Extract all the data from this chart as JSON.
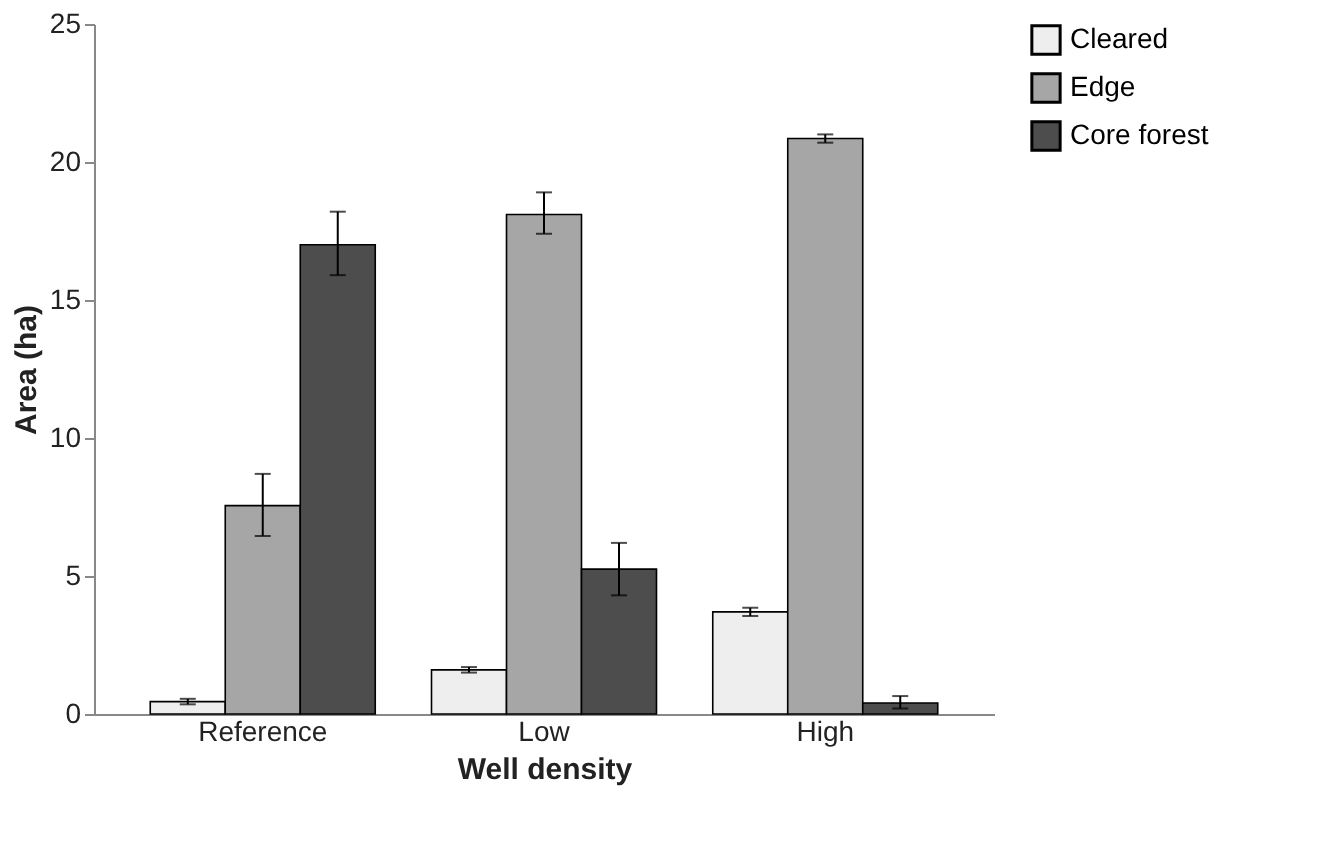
{
  "chart_data": {
    "type": "bar",
    "xlabel": "Well density",
    "ylabel": "Area (ha)",
    "categories": [
      "Reference",
      "Low",
      "High"
    ],
    "series": [
      {
        "name": "Cleared",
        "color": "#eeeeee",
        "values": [
          0.45,
          1.6,
          3.7
        ],
        "errors": [
          0.1,
          0.1,
          0.15
        ]
      },
      {
        "name": "Edge",
        "color": "#a6a6a6",
        "values": [
          7.55,
          18.1,
          20.85
        ],
        "errors": [
          [
            6.45,
            8.7
          ],
          [
            17.4,
            18.9
          ],
          [
            20.7,
            21.0
          ]
        ]
      },
      {
        "name": "Core forest",
        "color": "#4d4d4d",
        "values": [
          17.0,
          5.25,
          0.4
        ],
        "errors": [
          [
            15.9,
            18.2
          ],
          [
            4.3,
            6.2
          ],
          [
            0.2,
            0.65
          ]
        ]
      }
    ],
    "ylim": [
      0,
      25
    ],
    "yticks": [
      0,
      5,
      10,
      15,
      20,
      25
    ],
    "grid": false,
    "legend": "right"
  }
}
